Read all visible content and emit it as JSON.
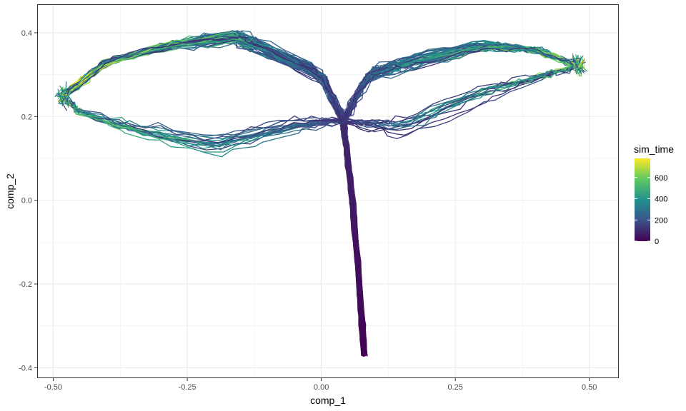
{
  "chart_data": {
    "type": "line",
    "title": "",
    "xlabel": "comp_1",
    "ylabel": "comp_2",
    "xlim": [
      -0.53,
      0.555
    ],
    "ylim": [
      -0.425,
      0.468
    ],
    "x_ticks": [
      -0.5,
      -0.25,
      0,
      0.25,
      0.5
    ],
    "x_tick_labels": [
      "-0.50",
      "-0.25",
      "0.00",
      "0.25",
      "0.50"
    ],
    "y_ticks": [
      -0.4,
      -0.2,
      0,
      0.2,
      0.4
    ],
    "y_tick_labels": [
      "-0.4",
      "-0.2",
      "0.0",
      "0.2",
      "0.4"
    ],
    "grid": true,
    "legend": {
      "title": "sim_time",
      "placement": "right",
      "range": [
        0,
        780
      ],
      "ticks": [
        0,
        200,
        400,
        600
      ],
      "tick_labels": [
        "0",
        "200",
        "400",
        "600"
      ],
      "colormap": [
        "#440154",
        "#3b528b",
        "#21918c",
        "#5ec962",
        "#fde725"
      ]
    },
    "trajectory_shape": {
      "stem": [
        [
          0.08,
          -0.37
        ],
        [
          0.073,
          -0.24
        ],
        [
          0.065,
          -0.1
        ],
        [
          0.056,
          0.02
        ],
        [
          0.047,
          0.12
        ],
        [
          0.04,
          0.19
        ]
      ],
      "left_arm_end": [
        -0.48,
        0.25
      ],
      "right_arm_end": [
        0.48,
        0.32
      ],
      "left_peak": [
        -0.16,
        0.39
      ],
      "right_peak": [
        0.3,
        0.37
      ],
      "stem_time_max": 100,
      "arm_time_range": [
        100,
        780
      ]
    }
  }
}
